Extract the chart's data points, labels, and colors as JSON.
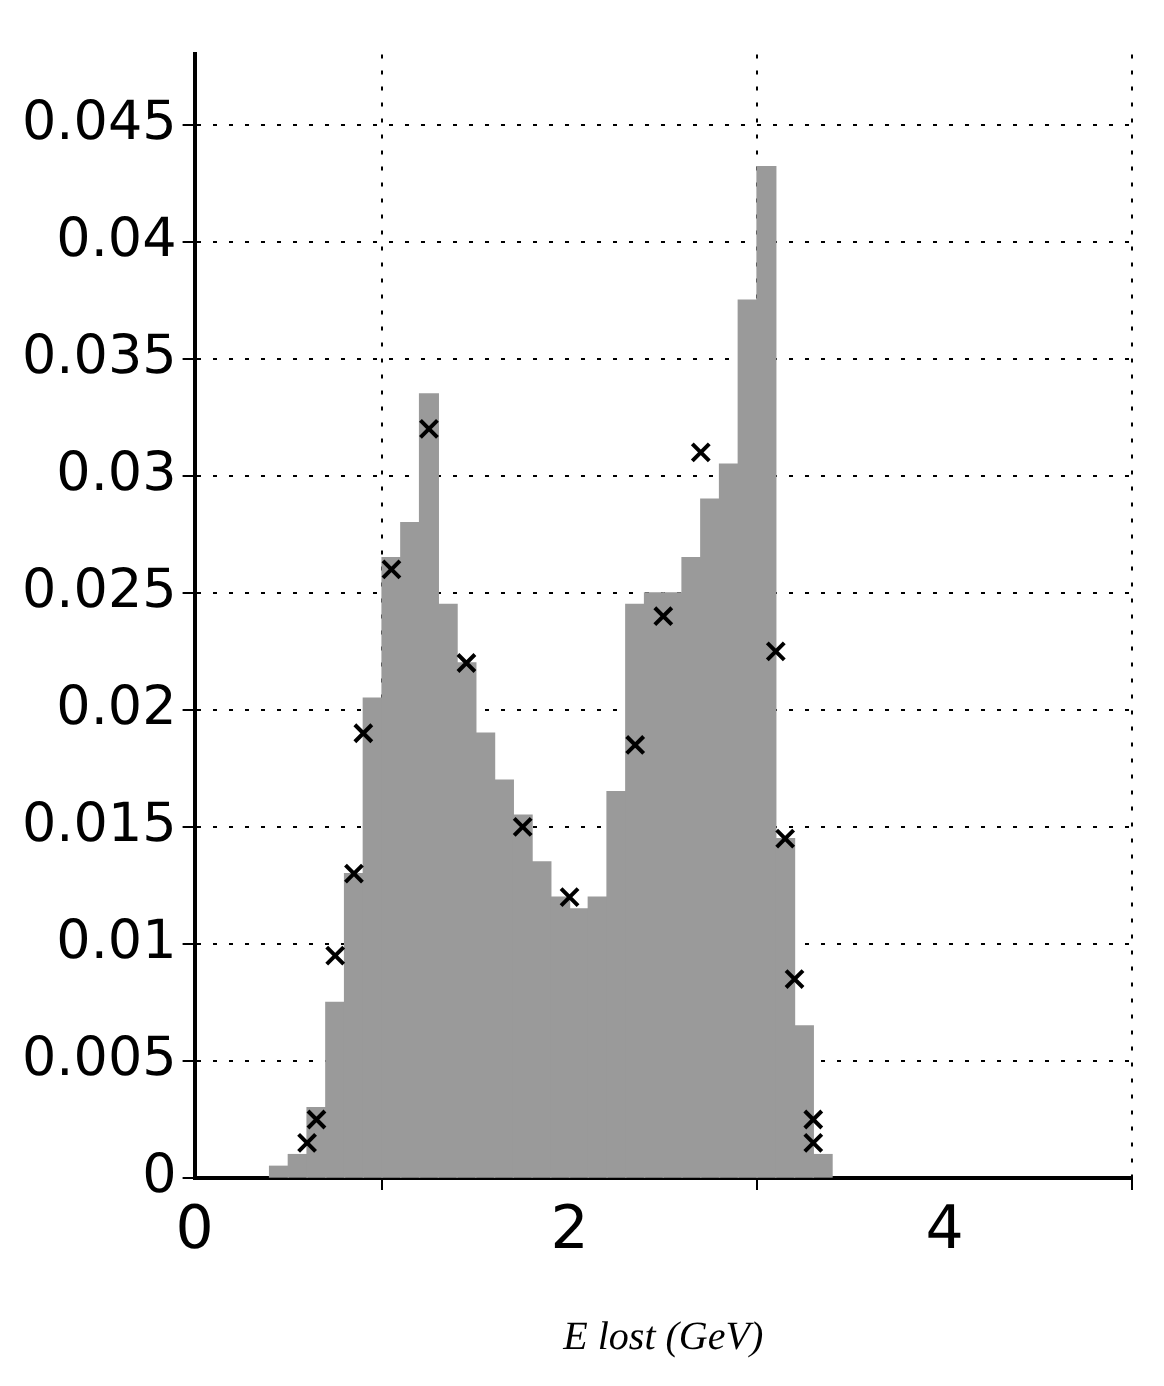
{
  "chart_data": {
    "type": "histogram",
    "xlabel": "E lost (GeV)",
    "bins": [
      0.4,
      0.5,
      0.6,
      0.7,
      0.8,
      0.9,
      1.0,
      1.1,
      1.2,
      1.3,
      1.4,
      1.5,
      1.6,
      1.7,
      1.8,
      1.9,
      2.0,
      2.1,
      2.2,
      2.3,
      2.4,
      2.5,
      2.6,
      2.7,
      2.8,
      2.9,
      3.0,
      3.1,
      3.2,
      3.3,
      3.4
    ],
    "values": [
      0.0005,
      0.001,
      0.003,
      0.0075,
      0.013,
      0.0205,
      0.0265,
      0.028,
      0.0335,
      0.0245,
      0.022,
      0.019,
      0.017,
      0.0155,
      0.0135,
      0.012,
      0.0115,
      0.012,
      0.0165,
      0.0245,
      0.025,
      0.025,
      0.0265,
      0.029,
      0.0305,
      0.0375,
      0.0432,
      0.0145,
      0.0065,
      0.001
    ],
    "color": "#9a9a9a",
    "series": [
      {
        "type": "scatter",
        "color": "#000000",
        "x": [
          0.6,
          0.65,
          0.75,
          0.85,
          0.9,
          1.05,
          1.25,
          1.45,
          1.75,
          2.0,
          2.35,
          2.5,
          2.7,
          3.1,
          3.15,
          3.2,
          3.3,
          3.3
        ],
        "values": [
          0.0015,
          0.0025,
          0.0095,
          0.013,
          0.019,
          0.026,
          0.032,
          0.022,
          0.015,
          0.012,
          0.0185,
          0.024,
          0.031,
          0.0225,
          0.0145,
          0.0085,
          0.0025,
          0.0015
        ]
      }
    ],
    "marker": "cross",
    "xlim": [
      0,
      5
    ],
    "xticks": [
      0,
      2,
      4
    ],
    "ylim": [
      0,
      0.048
    ],
    "yticks": [
      0,
      0.005,
      0.01,
      0.015,
      0.02,
      0.025,
      0.03,
      0.035,
      0.04,
      0.045
    ],
    "grid": true,
    "legend": false
  }
}
